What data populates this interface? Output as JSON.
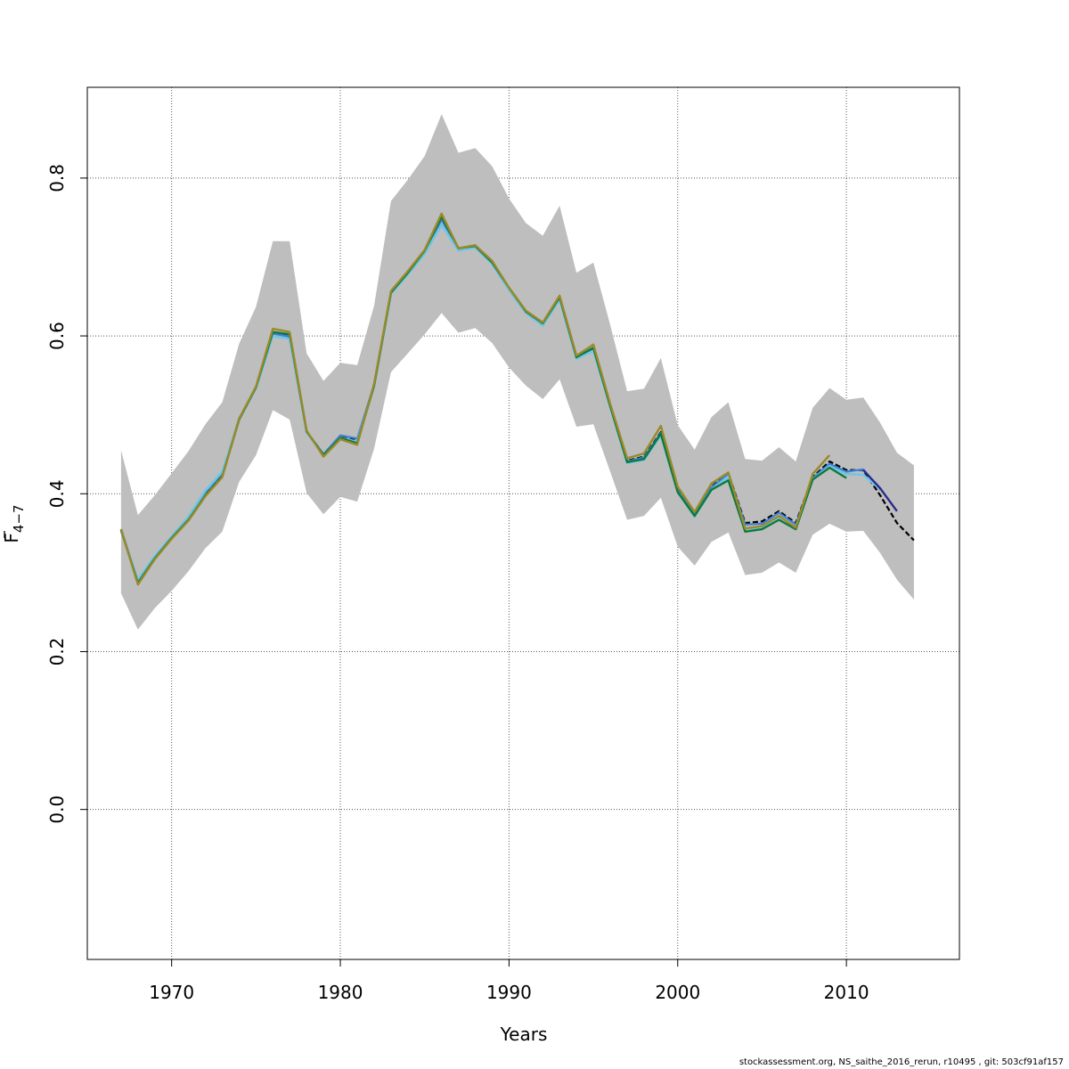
{
  "chart_data": {
    "type": "line",
    "xlabel": "Years",
    "ylabel_main": "F",
    "ylabel_sub": "4−7",
    "xlim": [
      1965,
      2016.7
    ],
    "ylim": [
      -0.19,
      0.915
    ],
    "x_ticks": [
      1970,
      1980,
      1990,
      2000,
      2010
    ],
    "y_ticks": [
      0.0,
      0.2,
      0.4,
      0.6,
      0.8
    ],
    "x_tick_labels": [
      "1970",
      "1980",
      "1990",
      "2000",
      "2010"
    ],
    "y_tick_labels": [
      "0.0",
      "0.2",
      "0.4",
      "0.6",
      "0.8"
    ],
    "grid": true,
    "band_color": "#bebebe",
    "years": [
      1967,
      1968,
      1969,
      1970,
      1971,
      1972,
      1973,
      1974,
      1975,
      1976,
      1977,
      1978,
      1979,
      1980,
      1981,
      1982,
      1983,
      1984,
      1985,
      1986,
      1987,
      1988,
      1989,
      1990,
      1991,
      1992,
      1993,
      1994,
      1995,
      1996,
      1997,
      1998,
      1999,
      2000,
      2001,
      2002,
      2003,
      2004,
      2005,
      2006,
      2007,
      2008,
      2009,
      2010,
      2011,
      2012,
      2013,
      2014
    ],
    "band": {
      "upper": [
        0.455,
        0.373,
        0.398,
        0.426,
        0.454,
        0.488,
        0.516,
        0.59,
        0.637,
        0.72,
        0.72,
        0.578,
        0.543,
        0.566,
        0.563,
        0.638,
        0.771,
        0.798,
        0.828,
        0.881,
        0.832,
        0.838,
        0.815,
        0.774,
        0.743,
        0.727,
        0.765,
        0.68,
        0.693,
        0.614,
        0.53,
        0.533,
        0.572,
        0.487,
        0.456,
        0.497,
        0.516,
        0.444,
        0.442,
        0.459,
        0.441,
        0.509,
        0.534,
        0.519,
        0.522,
        0.49,
        0.452,
        0.436
      ],
      "lower": [
        0.274,
        0.228,
        0.255,
        0.277,
        0.302,
        0.331,
        0.352,
        0.415,
        0.449,
        0.506,
        0.494,
        0.401,
        0.374,
        0.396,
        0.39,
        0.457,
        0.554,
        0.578,
        0.602,
        0.629,
        0.604,
        0.61,
        0.591,
        0.56,
        0.537,
        0.52,
        0.545,
        0.485,
        0.488,
        0.428,
        0.367,
        0.372,
        0.395,
        0.333,
        0.309,
        0.339,
        0.351,
        0.297,
        0.3,
        0.313,
        0.3,
        0.348,
        0.362,
        0.352,
        0.353,
        0.325,
        0.291,
        0.266
      ]
    },
    "series": [
      {
        "color": "#000000",
        "dashed": true,
        "width": 2.2,
        "x": [
          1967,
          1968,
          1969,
          1970,
          1971,
          1972,
          1973,
          1974,
          1975,
          1976,
          1977,
          1978,
          1979,
          1980,
          1981,
          1982,
          1983,
          1984,
          1985,
          1986,
          1987,
          1988,
          1989,
          1990,
          1991,
          1992,
          1993,
          1994,
          1995,
          1996,
          1997,
          1998,
          1999,
          2000,
          2001,
          2002,
          2003,
          2004,
          2005,
          2006,
          2007,
          2008,
          2009,
          2010,
          2011,
          2012,
          2013,
          2014
        ],
        "y": [
          0.355,
          0.288,
          0.318,
          0.344,
          0.368,
          0.401,
          0.425,
          0.495,
          0.535,
          0.604,
          0.601,
          0.479,
          0.45,
          0.473,
          0.468,
          0.538,
          0.655,
          0.68,
          0.707,
          0.749,
          0.71,
          0.714,
          0.693,
          0.66,
          0.631,
          0.617,
          0.648,
          0.574,
          0.584,
          0.511,
          0.442,
          0.447,
          0.478,
          0.405,
          0.374,
          0.409,
          0.426,
          0.363,
          0.365,
          0.378,
          0.363,
          0.421,
          0.441,
          0.43,
          0.43,
          0.398,
          0.363,
          0.341
        ]
      },
      {
        "color": "#3f7fd6",
        "dashed": false,
        "width": 2.2,
        "x": [
          1967,
          1968,
          1969,
          1970,
          1971,
          1972,
          1973,
          1974,
          1975,
          1976,
          1977,
          1978,
          1979,
          1980,
          1981,
          1982,
          1983,
          1984,
          1985,
          1986,
          1987,
          1988,
          1989,
          1990,
          1991,
          1992,
          1993,
          1994,
          1995,
          1996,
          1997,
          1998,
          1999,
          2000,
          2001,
          2002,
          2003,
          2004,
          2005,
          2006,
          2007,
          2008,
          2009,
          2010,
          2011,
          2012
        ],
        "y": [
          0.355,
          0.29,
          0.319,
          0.344,
          0.369,
          0.402,
          0.426,
          0.495,
          0.535,
          0.603,
          0.599,
          0.479,
          0.45,
          0.474,
          0.47,
          0.538,
          0.655,
          0.68,
          0.706,
          0.747,
          0.71,
          0.714,
          0.693,
          0.66,
          0.631,
          0.616,
          0.648,
          0.573,
          0.583,
          0.511,
          0.441,
          0.446,
          0.477,
          0.404,
          0.373,
          0.408,
          0.425,
          0.361,
          0.362,
          0.376,
          0.361,
          0.42,
          0.438,
          0.428,
          0.431,
          0.405
        ]
      },
      {
        "color": "#6ec6e6",
        "dashed": false,
        "width": 2.6,
        "x": [
          1967,
          1968,
          1969,
          1970,
          1971,
          1972,
          1973,
          1974,
          1975,
          1976,
          1977,
          1978,
          1979,
          1980,
          1981,
          1982,
          1983,
          1984,
          1985,
          1986,
          1987,
          1988,
          1989,
          1990,
          1991,
          1992,
          1993,
          1994,
          1995,
          1996,
          1997,
          1998,
          1999,
          2000,
          2001,
          2002,
          2003,
          2004,
          2005,
          2006,
          2007,
          2008,
          2009,
          2010,
          2011,
          2012
        ],
        "y": [
          0.353,
          0.291,
          0.321,
          0.346,
          0.371,
          0.404,
          0.428,
          0.494,
          0.534,
          0.6,
          0.596,
          0.478,
          0.449,
          0.471,
          0.466,
          0.536,
          0.653,
          0.678,
          0.704,
          0.741,
          0.708,
          0.712,
          0.691,
          0.658,
          0.629,
          0.613,
          0.646,
          0.571,
          0.581,
          0.51,
          0.439,
          0.443,
          0.474,
          0.402,
          0.371,
          0.405,
          0.422,
          0.356,
          0.357,
          0.371,
          0.357,
          0.418,
          0.435,
          0.425,
          0.424,
          0.406
        ]
      },
      {
        "color": "#0d7a3c",
        "dashed": false,
        "width": 2.4,
        "x": [
          1967,
          1968,
          1969,
          1970,
          1971,
          1972,
          1973,
          1974,
          1975,
          1976,
          1977,
          1978,
          1979,
          1980,
          1981,
          1982,
          1983,
          1984,
          1985,
          1986,
          1987,
          1988,
          1989,
          1990,
          1991,
          1992,
          1993,
          1994,
          1995,
          1996,
          1997,
          1998,
          1999,
          2000,
          2001,
          2002,
          2003,
          2004,
          2005,
          2006,
          2007,
          2008,
          2009,
          2010
        ],
        "y": [
          0.354,
          0.287,
          0.318,
          0.344,
          0.367,
          0.398,
          0.422,
          0.494,
          0.535,
          0.605,
          0.602,
          0.479,
          0.449,
          0.471,
          0.464,
          0.537,
          0.655,
          0.68,
          0.708,
          0.751,
          0.711,
          0.714,
          0.693,
          0.661,
          0.631,
          0.616,
          0.649,
          0.573,
          0.585,
          0.511,
          0.44,
          0.444,
          0.476,
          0.402,
          0.372,
          0.405,
          0.417,
          0.352,
          0.355,
          0.367,
          0.355,
          0.418,
          0.433,
          0.42
        ]
      },
      {
        "color": "#9a8a2a",
        "dashed": false,
        "width": 2.4,
        "x": [
          1967,
          1968,
          1969,
          1970,
          1971,
          1972,
          1973,
          1974,
          1975,
          1976,
          1977,
          1978,
          1979,
          1980,
          1981,
          1982,
          1983,
          1984,
          1985,
          1986,
          1987,
          1988,
          1989,
          1990,
          1991,
          1992,
          1993,
          1994,
          1995,
          1996,
          1997,
          1998,
          1999,
          2000,
          2001,
          2002,
          2003,
          2004,
          2005,
          2006,
          2007,
          2008,
          2009
        ],
        "y": [
          0.355,
          0.285,
          0.317,
          0.343,
          0.366,
          0.397,
          0.421,
          0.495,
          0.536,
          0.609,
          0.605,
          0.48,
          0.447,
          0.469,
          0.462,
          0.539,
          0.657,
          0.682,
          0.709,
          0.755,
          0.711,
          0.715,
          0.695,
          0.661,
          0.632,
          0.617,
          0.651,
          0.575,
          0.589,
          0.514,
          0.445,
          0.451,
          0.486,
          0.409,
          0.377,
          0.413,
          0.427,
          0.356,
          0.359,
          0.372,
          0.357,
          0.425,
          0.449
        ]
      },
      {
        "color": "#2b2a8c",
        "dashed": false,
        "width": 2.4,
        "x": [
          2011,
          2012,
          2013
        ],
        "y": [
          0.43,
          0.407,
          0.378
        ]
      }
    ]
  },
  "footer": {
    "text": "stockassessment.org, NS_saithe_2016_rerun, r10495 , git: 503cf91af157"
  }
}
